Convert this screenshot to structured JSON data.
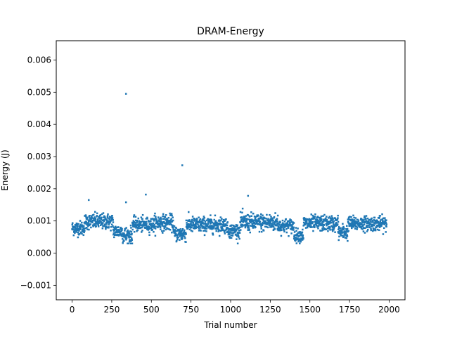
{
  "chart_data": {
    "type": "scatter",
    "title": "DRAM-Energy",
    "xlabel": "Trial number",
    "ylabel": "Energy (J)",
    "xlim": [
      -100,
      2100
    ],
    "ylim": [
      -0.00145,
      0.0066
    ],
    "xticks": [
      0,
      250,
      500,
      750,
      1000,
      1250,
      1500,
      1750,
      2000
    ],
    "yticks": [
      -0.001,
      0.0,
      0.001,
      0.002,
      0.003,
      0.004,
      0.005,
      0.006
    ],
    "xtick_labels": [
      "0",
      "250",
      "500",
      "750",
      "1000",
      "1250",
      "1500",
      "1750",
      "2000"
    ],
    "ytick_labels": [
      "−0.001",
      "0.000",
      "0.001",
      "0.002",
      "0.003",
      "0.004",
      "0.005",
      "0.006"
    ],
    "grid": false,
    "color": "#1f77b4",
    "marker": "square",
    "n_points": 2000,
    "outliers": [
      {
        "x": 340,
        "y": 0.00495
      },
      {
        "x": 695,
        "y": 0.00273
      },
      {
        "x": 465,
        "y": 0.00182
      },
      {
        "x": 1110,
        "y": 0.00178
      },
      {
        "x": 340,
        "y": 0.00158
      },
      {
        "x": 105,
        "y": 0.00165
      }
    ],
    "segments": [
      {
        "x_start": 0,
        "x_end": 80,
        "mean": 0.00078,
        "spread": 0.0002
      },
      {
        "x_start": 80,
        "x_end": 260,
        "mean": 0.00098,
        "spread": 0.00022
      },
      {
        "x_start": 260,
        "x_end": 320,
        "mean": 0.00068,
        "spread": 0.0002
      },
      {
        "x_start": 320,
        "x_end": 380,
        "mean": 0.00055,
        "spread": 0.00025
      },
      {
        "x_start": 380,
        "x_end": 520,
        "mean": 0.00088,
        "spread": 0.0002
      },
      {
        "x_start": 520,
        "x_end": 640,
        "mean": 0.00095,
        "spread": 0.00022
      },
      {
        "x_start": 640,
        "x_end": 720,
        "mean": 0.0006,
        "spread": 0.00022
      },
      {
        "x_start": 720,
        "x_end": 980,
        "mean": 0.00088,
        "spread": 0.00022
      },
      {
        "x_start": 980,
        "x_end": 1060,
        "mean": 0.0007,
        "spread": 0.0002
      },
      {
        "x_start": 1060,
        "x_end": 1300,
        "mean": 0.00095,
        "spread": 0.00025
      },
      {
        "x_start": 1300,
        "x_end": 1400,
        "mean": 0.00085,
        "spread": 0.0002
      },
      {
        "x_start": 1400,
        "x_end": 1460,
        "mean": 0.00055,
        "spread": 0.00018
      },
      {
        "x_start": 1460,
        "x_end": 1680,
        "mean": 0.00092,
        "spread": 0.00022
      },
      {
        "x_start": 1680,
        "x_end": 1740,
        "mean": 0.00065,
        "spread": 0.00022
      },
      {
        "x_start": 1740,
        "x_end": 1980,
        "mean": 0.00092,
        "spread": 0.0002
      }
    ]
  }
}
